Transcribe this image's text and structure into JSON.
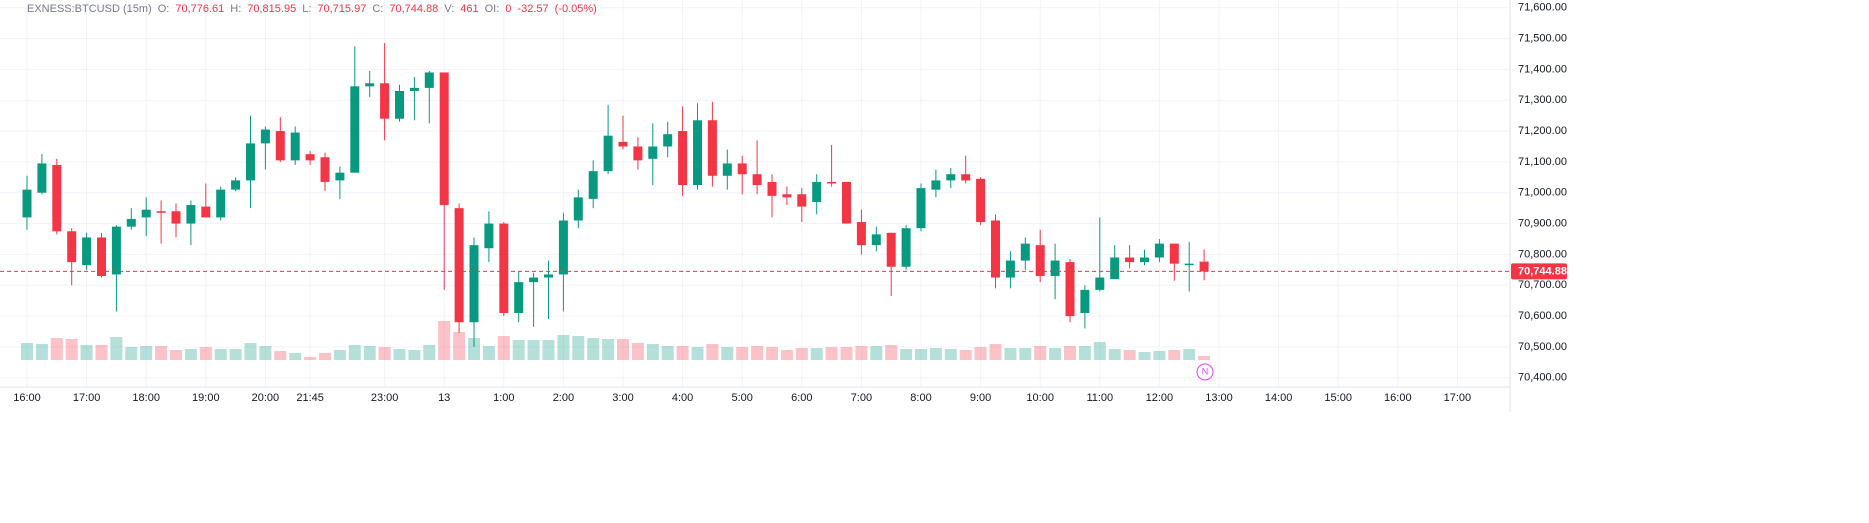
{
  "chart_data": {
    "type": "candlestick",
    "header": {
      "symbol": "EXNESS:BTCUSD (15m)",
      "fields": [
        {
          "key": "O:",
          "value": "70,776.61"
        },
        {
          "key": "H:",
          "value": "70,815.95"
        },
        {
          "key": "L:",
          "value": "70,715.97"
        },
        {
          "key": "C:",
          "value": "70,744.88"
        },
        {
          "key": "V:",
          "value": "461"
        },
        {
          "key": "OI:",
          "value": "0"
        }
      ],
      "change": "-32.57",
      "change_pct": "(-0.05%)"
    },
    "categories": [
      "16:00",
      null,
      null,
      null,
      "17:00",
      null,
      null,
      null,
      "18:00",
      null,
      null,
      null,
      "19:00",
      null,
      null,
      null,
      "20:00",
      null,
      null,
      "21:45",
      null,
      null,
      null,
      null,
      "23:00",
      null,
      null,
      null,
      "13",
      null,
      null,
      null,
      "1:00",
      null,
      null,
      null,
      "2:00",
      null,
      null,
      null,
      "3:00",
      null,
      null,
      null,
      "4:00",
      null,
      null,
      null,
      "5:00",
      null,
      null,
      null,
      "6:00",
      null,
      null,
      null,
      "7:00",
      null,
      null,
      null,
      "8:00",
      null,
      null,
      null,
      "9:00",
      null,
      null,
      null,
      "10:00",
      null,
      null,
      null,
      "11:00",
      null,
      null,
      null,
      "12:00",
      null,
      null,
      null,
      "13:00",
      null,
      null,
      null,
      "14:00",
      null,
      null,
      null,
      "15:00",
      null,
      null,
      null,
      "16:00",
      null,
      null,
      null,
      "17:00"
    ],
    "open": [
      70920,
      71000,
      71090,
      70875,
      70765,
      70855,
      70735,
      70890,
      70920,
      70940,
      70940,
      70900,
      70955,
      70920,
      71010,
      71040,
      71160,
      71200,
      71105,
      71125,
      71115,
      71040,
      71065,
      71345,
      71355,
      71240,
      71330,
      71340,
      71390,
      70950,
      70580,
      70820,
      70900,
      70610,
      70710,
      70725,
      70735,
      70910,
      70980,
      71070,
      71165,
      71150,
      71110,
      71150,
      71200,
      71025,
      71235,
      71055,
      71095,
      71060,
      71035,
      70995,
      70995,
      70970,
      71035,
      71035,
      70905,
      70830,
      70870,
      70760,
      70885,
      71010,
      71040,
      71060,
      71045,
      70910,
      70725,
      70780,
      70830,
      70730,
      70775,
      70610,
      70685,
      70720,
      70790,
      70775,
      70790,
      70835,
      70765,
      70776.61,
      null,
      null,
      null,
      null,
      null,
      null,
      null,
      null,
      null,
      null,
      null,
      null,
      null,
      null,
      null,
      null,
      null
    ],
    "high": [
      71055,
      71125,
      71110,
      70885,
      70870,
      70870,
      70895,
      70950,
      70985,
      70975,
      70965,
      70975,
      71030,
      71020,
      71050,
      71250,
      71215,
      71245,
      71215,
      71135,
      71130,
      71085,
      71475,
      71395,
      71485,
      71350,
      71375,
      71395,
      71390,
      70965,
      70855,
      70940,
      70905,
      70745,
      70740,
      70780,
      70935,
      71010,
      71105,
      71285,
      71250,
      71180,
      71225,
      71230,
      71280,
      71290,
      71295,
      71140,
      71120,
      71170,
      71060,
      71020,
      71015,
      71060,
      71155,
      71035,
      70945,
      70890,
      70870,
      70895,
      71030,
      71075,
      71080,
      71120,
      71050,
      70930,
      70810,
      70855,
      70880,
      70835,
      70785,
      70700,
      70920,
      70830,
      70830,
      70815,
      70850,
      70835,
      70840,
      70815.95,
      null,
      null,
      null,
      null,
      null,
      null,
      null,
      null,
      null,
      null,
      null,
      null,
      null,
      null,
      null,
      null,
      null
    ],
    "low": [
      70880,
      70995,
      70865,
      70700,
      70750,
      70725,
      70615,
      70880,
      70860,
      70835,
      70855,
      70830,
      70920,
      70910,
      71005,
      70950,
      71075,
      71100,
      71090,
      71090,
      71005,
      70980,
      71065,
      71310,
      71170,
      71230,
      71235,
      71225,
      70685,
      70545,
      70500,
      70775,
      70600,
      70580,
      70565,
      70590,
      70615,
      70885,
      70950,
      71060,
      71140,
      71075,
      71025,
      71115,
      70990,
      71010,
      71020,
      71010,
      70995,
      70995,
      70920,
      70960,
      70905,
      70930,
      71020,
      70900,
      70800,
      70810,
      70665,
      70750,
      70875,
      70985,
      71015,
      71030,
      70895,
      70690,
      70690,
      70750,
      70710,
      70655,
      70580,
      70560,
      70680,
      70720,
      70755,
      70765,
      70775,
      70715,
      70680,
      70715.97,
      null,
      null,
      null,
      null,
      null,
      null,
      null,
      null,
      null,
      null,
      null,
      null,
      null,
      null,
      null,
      null,
      null
    ],
    "close": [
      71010,
      71095,
      70875,
      70775,
      70855,
      70730,
      70890,
      70915,
      70945,
      70935,
      70900,
      70960,
      70920,
      71010,
      71040,
      71160,
      71205,
      71105,
      71195,
      71105,
      71035,
      71065,
      71345,
      71355,
      71240,
      71330,
      71340,
      71390,
      70960,
      70580,
      70830,
      70900,
      70610,
      70710,
      70725,
      70735,
      70910,
      70985,
      71070,
      71185,
      71150,
      71105,
      71150,
      71190,
      71025,
      71235,
      71055,
      71095,
      71060,
      71025,
      70990,
      70985,
      70955,
      71035,
      71030,
      70900,
      70830,
      70865,
      70760,
      70885,
      71015,
      71040,
      71060,
      71040,
      70905,
      70725,
      70780,
      70835,
      70730,
      70780,
      70600,
      70685,
      70725,
      70790,
      70775,
      70790,
      70835,
      70770,
      70770,
      70744.88,
      null,
      null,
      null,
      null,
      null,
      null,
      null,
      null,
      null,
      null,
      null,
      null,
      null,
      null,
      null,
      null,
      null
    ],
    "volume": [
      1955,
      1840,
      2530,
      2415,
      1725,
      1725,
      2645,
      1495,
      1610,
      1610,
      1150,
      1265,
      1495,
      1265,
      1265,
      1955,
      1610,
      1035,
      805,
      345,
      805,
      1150,
      1725,
      1610,
      1495,
      1265,
      1150,
      1725,
      4485,
      3220,
      2530,
      1610,
      2760,
      2300,
      2300,
      2300,
      2875,
      2760,
      2530,
      2415,
      2415,
      1955,
      1840,
      1610,
      1610,
      1495,
      1840,
      1495,
      1495,
      1610,
      1495,
      1150,
      1380,
      1380,
      1495,
      1495,
      1610,
      1610,
      1725,
      1265,
      1265,
      1380,
      1265,
      1150,
      1495,
      1840,
      1380,
      1380,
      1610,
      1380,
      1610,
      1610,
      2070,
      1265,
      1150,
      920,
      1035,
      1150,
      1265,
      461,
      null,
      null,
      null,
      null,
      null,
      null,
      null,
      null,
      null,
      null,
      null,
      null,
      null,
      null,
      null,
      null,
      null
    ],
    "up_color": "#089981",
    "down_color": "#f23645",
    "ylim": [
      70370,
      71625
    ],
    "yticks": [
      {
        "value": 70400,
        "label": "70,400.00"
      },
      {
        "value": 70500,
        "label": "70,500.00"
      },
      {
        "value": 70600,
        "label": "70,600.00"
      },
      {
        "value": 70700,
        "label": "70,700.00"
      },
      {
        "value": 70800,
        "label": "70,800.00"
      },
      {
        "value": 70900,
        "label": "70,900.00"
      },
      {
        "value": 71000,
        "label": "71,000.00"
      },
      {
        "value": 71100,
        "label": "71,100.00"
      },
      {
        "value": 71200,
        "label": "71,200.00"
      },
      {
        "value": 71300,
        "label": "71,300.00"
      },
      {
        "value": 71400,
        "label": "71,400.00"
      },
      {
        "value": 71500,
        "label": "71,500.00"
      },
      {
        "value": 71600,
        "label": "71,600.00"
      }
    ],
    "last_price": {
      "value": 70744.88,
      "label": "70,744.88"
    },
    "news_marker": "N",
    "grid": true
  }
}
